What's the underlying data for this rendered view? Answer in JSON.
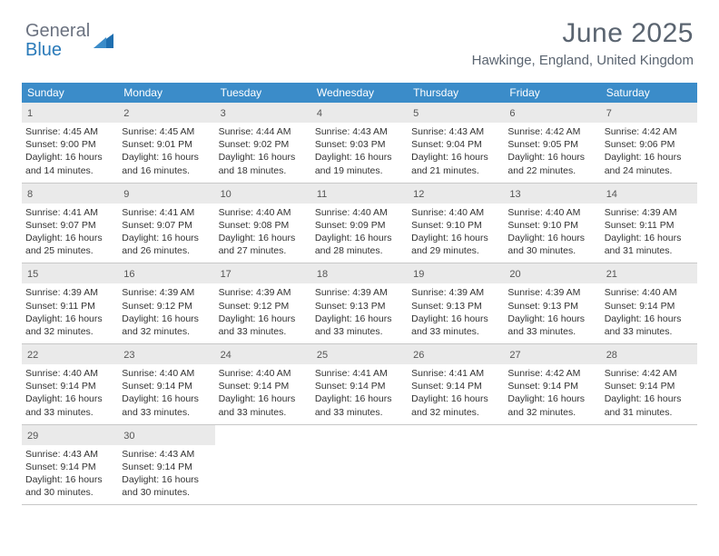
{
  "logo": {
    "general": "General",
    "blue": "Blue"
  },
  "header": {
    "month_title": "June 2025",
    "location": "Hawkinge, England, United Kingdom"
  },
  "colors": {
    "header_bg": "#3b8cc9",
    "header_text": "#ffffff",
    "daynum_bg": "#eaeaea",
    "rule": "#c8c8c8",
    "title_text": "#5a6470"
  },
  "weekdays": [
    "Sunday",
    "Monday",
    "Tuesday",
    "Wednesday",
    "Thursday",
    "Friday",
    "Saturday"
  ],
  "weeks": [
    [
      {
        "n": "1",
        "sunrise": "Sunrise: 4:45 AM",
        "sunset": "Sunset: 9:00 PM",
        "d1": "Daylight: 16 hours",
        "d2": "and 14 minutes."
      },
      {
        "n": "2",
        "sunrise": "Sunrise: 4:45 AM",
        "sunset": "Sunset: 9:01 PM",
        "d1": "Daylight: 16 hours",
        "d2": "and 16 minutes."
      },
      {
        "n": "3",
        "sunrise": "Sunrise: 4:44 AM",
        "sunset": "Sunset: 9:02 PM",
        "d1": "Daylight: 16 hours",
        "d2": "and 18 minutes."
      },
      {
        "n": "4",
        "sunrise": "Sunrise: 4:43 AM",
        "sunset": "Sunset: 9:03 PM",
        "d1": "Daylight: 16 hours",
        "d2": "and 19 minutes."
      },
      {
        "n": "5",
        "sunrise": "Sunrise: 4:43 AM",
        "sunset": "Sunset: 9:04 PM",
        "d1": "Daylight: 16 hours",
        "d2": "and 21 minutes."
      },
      {
        "n": "6",
        "sunrise": "Sunrise: 4:42 AM",
        "sunset": "Sunset: 9:05 PM",
        "d1": "Daylight: 16 hours",
        "d2": "and 22 minutes."
      },
      {
        "n": "7",
        "sunrise": "Sunrise: 4:42 AM",
        "sunset": "Sunset: 9:06 PM",
        "d1": "Daylight: 16 hours",
        "d2": "and 24 minutes."
      }
    ],
    [
      {
        "n": "8",
        "sunrise": "Sunrise: 4:41 AM",
        "sunset": "Sunset: 9:07 PM",
        "d1": "Daylight: 16 hours",
        "d2": "and 25 minutes."
      },
      {
        "n": "9",
        "sunrise": "Sunrise: 4:41 AM",
        "sunset": "Sunset: 9:07 PM",
        "d1": "Daylight: 16 hours",
        "d2": "and 26 minutes."
      },
      {
        "n": "10",
        "sunrise": "Sunrise: 4:40 AM",
        "sunset": "Sunset: 9:08 PM",
        "d1": "Daylight: 16 hours",
        "d2": "and 27 minutes."
      },
      {
        "n": "11",
        "sunrise": "Sunrise: 4:40 AM",
        "sunset": "Sunset: 9:09 PM",
        "d1": "Daylight: 16 hours",
        "d2": "and 28 minutes."
      },
      {
        "n": "12",
        "sunrise": "Sunrise: 4:40 AM",
        "sunset": "Sunset: 9:10 PM",
        "d1": "Daylight: 16 hours",
        "d2": "and 29 minutes."
      },
      {
        "n": "13",
        "sunrise": "Sunrise: 4:40 AM",
        "sunset": "Sunset: 9:10 PM",
        "d1": "Daylight: 16 hours",
        "d2": "and 30 minutes."
      },
      {
        "n": "14",
        "sunrise": "Sunrise: 4:39 AM",
        "sunset": "Sunset: 9:11 PM",
        "d1": "Daylight: 16 hours",
        "d2": "and 31 minutes."
      }
    ],
    [
      {
        "n": "15",
        "sunrise": "Sunrise: 4:39 AM",
        "sunset": "Sunset: 9:11 PM",
        "d1": "Daylight: 16 hours",
        "d2": "and 32 minutes."
      },
      {
        "n": "16",
        "sunrise": "Sunrise: 4:39 AM",
        "sunset": "Sunset: 9:12 PM",
        "d1": "Daylight: 16 hours",
        "d2": "and 32 minutes."
      },
      {
        "n": "17",
        "sunrise": "Sunrise: 4:39 AM",
        "sunset": "Sunset: 9:12 PM",
        "d1": "Daylight: 16 hours",
        "d2": "and 33 minutes."
      },
      {
        "n": "18",
        "sunrise": "Sunrise: 4:39 AM",
        "sunset": "Sunset: 9:13 PM",
        "d1": "Daylight: 16 hours",
        "d2": "and 33 minutes."
      },
      {
        "n": "19",
        "sunrise": "Sunrise: 4:39 AM",
        "sunset": "Sunset: 9:13 PM",
        "d1": "Daylight: 16 hours",
        "d2": "and 33 minutes."
      },
      {
        "n": "20",
        "sunrise": "Sunrise: 4:39 AM",
        "sunset": "Sunset: 9:13 PM",
        "d1": "Daylight: 16 hours",
        "d2": "and 33 minutes."
      },
      {
        "n": "21",
        "sunrise": "Sunrise: 4:40 AM",
        "sunset": "Sunset: 9:14 PM",
        "d1": "Daylight: 16 hours",
        "d2": "and 33 minutes."
      }
    ],
    [
      {
        "n": "22",
        "sunrise": "Sunrise: 4:40 AM",
        "sunset": "Sunset: 9:14 PM",
        "d1": "Daylight: 16 hours",
        "d2": "and 33 minutes."
      },
      {
        "n": "23",
        "sunrise": "Sunrise: 4:40 AM",
        "sunset": "Sunset: 9:14 PM",
        "d1": "Daylight: 16 hours",
        "d2": "and 33 minutes."
      },
      {
        "n": "24",
        "sunrise": "Sunrise: 4:40 AM",
        "sunset": "Sunset: 9:14 PM",
        "d1": "Daylight: 16 hours",
        "d2": "and 33 minutes."
      },
      {
        "n": "25",
        "sunrise": "Sunrise: 4:41 AM",
        "sunset": "Sunset: 9:14 PM",
        "d1": "Daylight: 16 hours",
        "d2": "and 33 minutes."
      },
      {
        "n": "26",
        "sunrise": "Sunrise: 4:41 AM",
        "sunset": "Sunset: 9:14 PM",
        "d1": "Daylight: 16 hours",
        "d2": "and 32 minutes."
      },
      {
        "n": "27",
        "sunrise": "Sunrise: 4:42 AM",
        "sunset": "Sunset: 9:14 PM",
        "d1": "Daylight: 16 hours",
        "d2": "and 32 minutes."
      },
      {
        "n": "28",
        "sunrise": "Sunrise: 4:42 AM",
        "sunset": "Sunset: 9:14 PM",
        "d1": "Daylight: 16 hours",
        "d2": "and 31 minutes."
      }
    ],
    [
      {
        "n": "29",
        "sunrise": "Sunrise: 4:43 AM",
        "sunset": "Sunset: 9:14 PM",
        "d1": "Daylight: 16 hours",
        "d2": "and 30 minutes."
      },
      {
        "n": "30",
        "sunrise": "Sunrise: 4:43 AM",
        "sunset": "Sunset: 9:14 PM",
        "d1": "Daylight: 16 hours",
        "d2": "and 30 minutes."
      },
      null,
      null,
      null,
      null,
      null
    ]
  ]
}
